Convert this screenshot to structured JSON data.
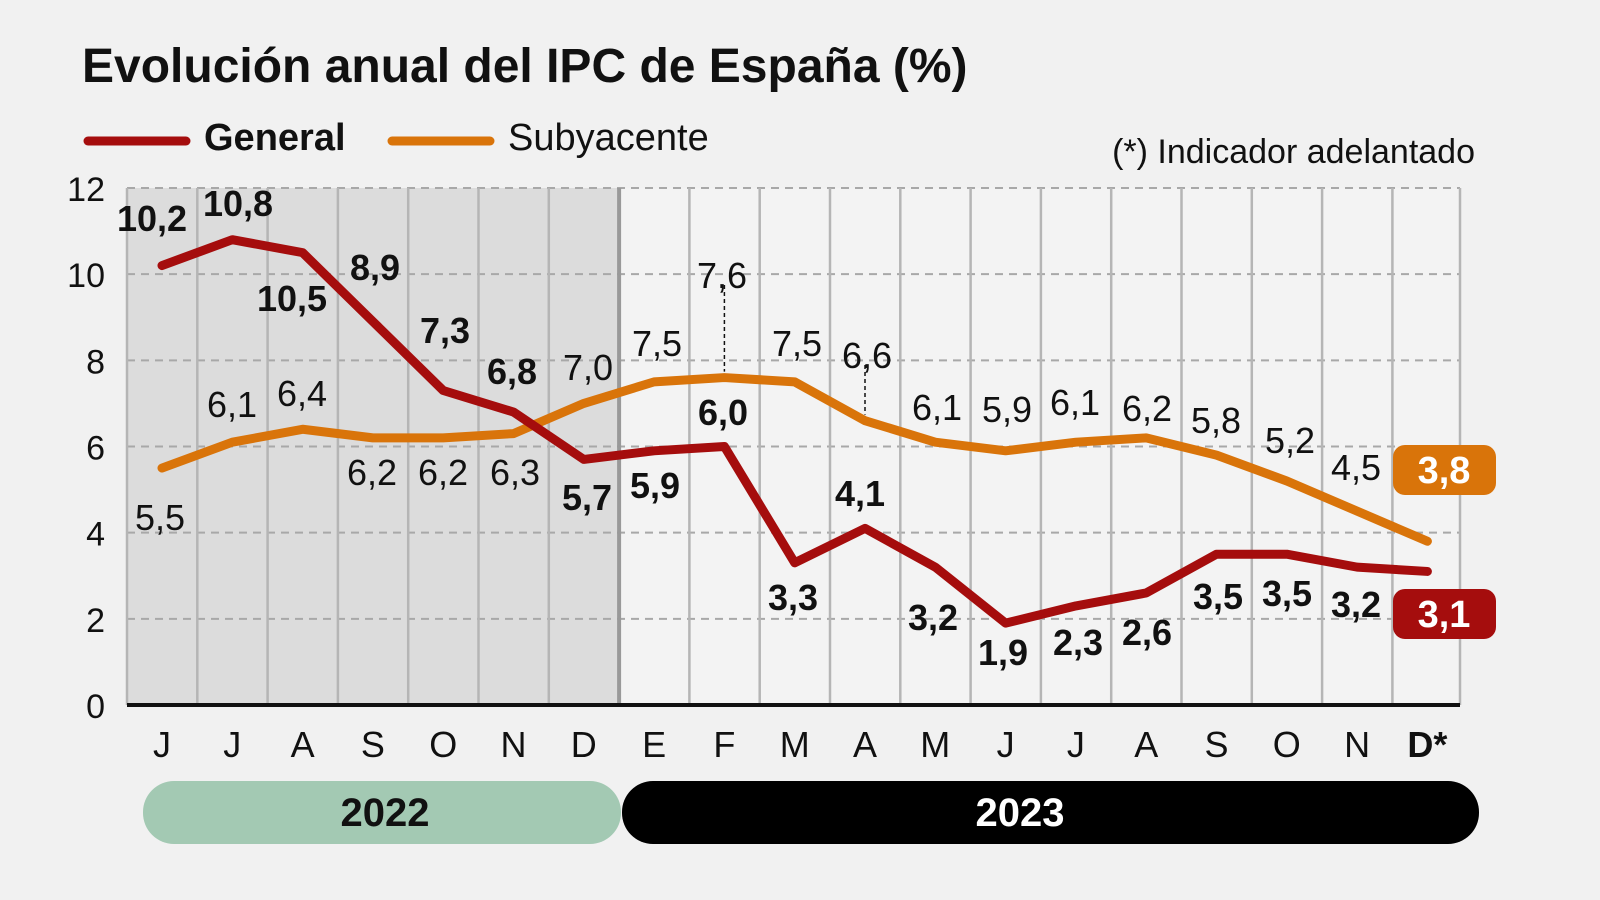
{
  "chart_data": {
    "type": "line",
    "title": "Evolución anual del IPC de España (%)",
    "note": "(*) Indicador adelantado",
    "categories": [
      "J",
      "J",
      "A",
      "S",
      "O",
      "N",
      "D",
      "E",
      "F",
      "M",
      "A",
      "M",
      "J",
      "J",
      "A",
      "S",
      "O",
      "N",
      "D*"
    ],
    "years": [
      {
        "label": "2022",
        "months": 7,
        "color": "#a3c9b3"
      },
      {
        "label": "2023",
        "months": 12,
        "color": "#000000"
      }
    ],
    "series": [
      {
        "name": "General",
        "color": "#a50d0d",
        "values": [
          10.2,
          10.8,
          10.5,
          8.9,
          7.3,
          6.8,
          5.7,
          5.9,
          6.0,
          3.3,
          4.1,
          3.2,
          1.9,
          2.3,
          2.6,
          3.5,
          3.5,
          3.2,
          3.1
        ],
        "labels": [
          "10,2",
          "10,8",
          "10,5",
          "8,9",
          "7,3",
          "6,8",
          "5,7",
          "5,9",
          "6,0",
          "3,3",
          "4,1",
          "3,2",
          "1,9",
          "2,3",
          "2,6",
          "3,5",
          "3,5",
          "3,2",
          "3,1"
        ]
      },
      {
        "name": "Subyacente",
        "color": "#d9740a",
        "values": [
          5.5,
          6.1,
          6.4,
          6.2,
          6.2,
          6.3,
          7.0,
          7.5,
          7.6,
          7.5,
          6.6,
          6.1,
          5.9,
          6.1,
          6.2,
          5.8,
          5.2,
          4.5,
          3.8
        ],
        "labels": [
          "5,5",
          "6,1",
          "6,4",
          "6,2",
          "6,2",
          "6,3",
          "7,0",
          "7,5",
          "7,6",
          "7,5",
          "6,6",
          "6,1",
          "5,9",
          "6,1",
          "6,2",
          "5,8",
          "5,2",
          "4,5",
          "3,8"
        ]
      }
    ],
    "ylim": [
      0,
      12
    ],
    "yticks": [
      "0",
      "2",
      "4",
      "6",
      "8",
      "10",
      "12"
    ],
    "grid": true,
    "legend": "top-left",
    "shaded_region": "2022"
  }
}
